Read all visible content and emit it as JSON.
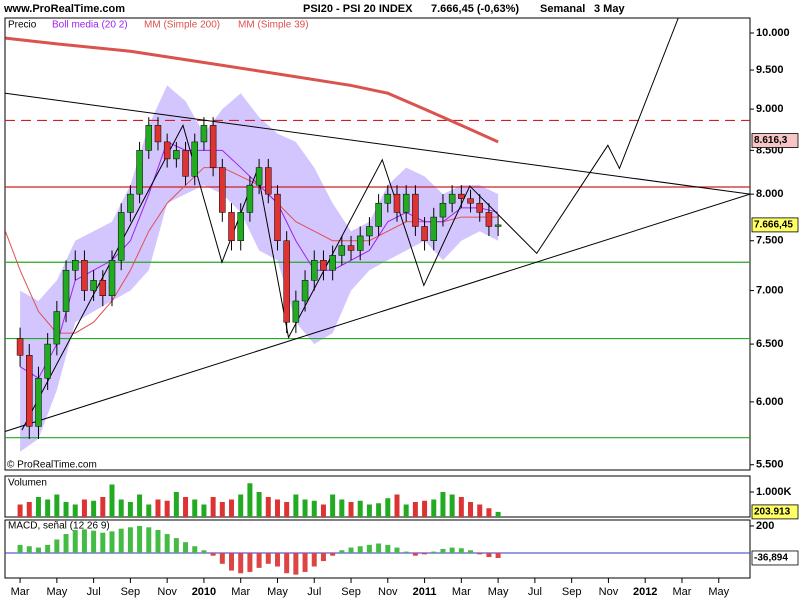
{
  "chart_data": [
    {
      "type": "candlestick",
      "site": "www.ProRealTime.com",
      "title": "PSI20 - PSI 20 INDEX",
      "last_label": "7.666,45 (-0,63%)",
      "period": "Semanal",
      "date": "3 May",
      "watermark": "© ProRealTime.com",
      "log_scale": true,
      "xlim": [
        1.18,
        41.7
      ],
      "ylim": [
        5.46,
        10.21
      ],
      "yticks": [
        {
          "value": 10,
          "label": "10.000"
        },
        {
          "value": 9.5,
          "label": "9.500"
        },
        {
          "value": 9,
          "label": "9.000"
        },
        {
          "value": 8.5,
          "label": "8.500"
        },
        {
          "value": 8,
          "label": "8.000"
        },
        {
          "value": 7.5,
          "label": "7.500"
        },
        {
          "value": 7,
          "label": "7.000"
        },
        {
          "value": 6.5,
          "label": "6.500"
        },
        {
          "value": 6,
          "label": "6.000"
        },
        {
          "value": 5.5,
          "label": "5.500"
        }
      ],
      "xticks": [
        {
          "value": 2,
          "label": "Mar"
        },
        {
          "value": 4,
          "label": "May"
        },
        {
          "value": 6,
          "label": "Jul"
        },
        {
          "value": 8,
          "label": "Sep"
        },
        {
          "value": 10,
          "label": "Nov"
        },
        {
          "value": 12,
          "label": "2010"
        },
        {
          "value": 14,
          "label": "Mar"
        },
        {
          "value": 16,
          "label": "May"
        },
        {
          "value": 18,
          "label": "Jul"
        },
        {
          "value": 20,
          "label": "Sep"
        },
        {
          "value": 22,
          "label": "Nov"
        },
        {
          "value": 24,
          "label": "2011"
        },
        {
          "value": 26,
          "label": "Mar"
        },
        {
          "value": 28,
          "label": "May"
        },
        {
          "value": 30,
          "label": "Jul"
        },
        {
          "value": 32,
          "label": "Sep"
        },
        {
          "value": 34,
          "label": "Nov"
        },
        {
          "value": 36,
          "label": "2012"
        },
        {
          "value": 38,
          "label": "Mar"
        },
        {
          "value": 40,
          "label": "May"
        }
      ],
      "candles": {
        "name": "Precio",
        "up_color": "#22aa22",
        "down_color": "#dd3333",
        "x": [
          2,
          2.5,
          3,
          3.5,
          4,
          4.5,
          5,
          5.5,
          6,
          6.5,
          7,
          7.5,
          8,
          8.5,
          9,
          9.5,
          10,
          10.5,
          11,
          11.5,
          12,
          12.5,
          13,
          13.5,
          14,
          14.5,
          15,
          15.5,
          16,
          16.5,
          17,
          17.5,
          18,
          18.5,
          19,
          19.5,
          20,
          20.5,
          21,
          21.5,
          22,
          22.5,
          23,
          23.5,
          24,
          24.5,
          25,
          25.5,
          26,
          26.5,
          27,
          27.5,
          28
        ],
        "open": [
          6.55,
          6.4,
          5.8,
          6.2,
          6.5,
          6.8,
          7.2,
          7.3,
          7.0,
          7.1,
          6.95,
          7.3,
          7.8,
          8.0,
          8.5,
          8.8,
          8.6,
          8.4,
          8.5,
          8.2,
          8.6,
          8.8,
          8.3,
          7.8,
          7.5,
          7.8,
          8.1,
          8.3,
          8.0,
          7.5,
          6.7,
          6.9,
          7.1,
          7.3,
          7.2,
          7.35,
          7.45,
          7.4,
          7.55,
          7.65,
          7.9,
          8.0,
          7.8,
          8.0,
          7.65,
          7.5,
          7.75,
          7.9,
          8.0,
          7.95,
          7.9,
          7.8,
          7.65
        ],
        "high": [
          6.65,
          6.5,
          6.3,
          6.6,
          6.9,
          7.3,
          7.4,
          7.4,
          7.2,
          7.2,
          7.4,
          7.9,
          8.1,
          8.6,
          8.9,
          8.9,
          8.7,
          8.6,
          8.6,
          8.7,
          8.9,
          8.9,
          8.4,
          7.9,
          7.9,
          8.2,
          8.4,
          8.4,
          8.1,
          7.6,
          7.0,
          7.2,
          7.4,
          7.4,
          7.45,
          7.55,
          7.55,
          7.65,
          7.75,
          8.0,
          8.1,
          8.1,
          8.1,
          8.1,
          7.75,
          7.85,
          8.0,
          8.1,
          8.1,
          8.05,
          8.0,
          7.9,
          7.77
        ],
        "low": [
          6.3,
          5.7,
          5.7,
          6.1,
          6.4,
          6.7,
          7.1,
          6.9,
          6.9,
          6.85,
          6.85,
          7.2,
          7.7,
          7.9,
          8.4,
          8.5,
          8.3,
          8.3,
          8.1,
          8.1,
          8.5,
          8.2,
          7.7,
          7.4,
          7.4,
          7.7,
          8.0,
          7.9,
          7.4,
          6.6,
          6.6,
          6.8,
          7.0,
          7.1,
          7.1,
          7.25,
          7.3,
          7.3,
          7.45,
          7.55,
          7.8,
          7.7,
          7.7,
          7.55,
          7.4,
          7.4,
          7.65,
          7.8,
          7.85,
          7.8,
          7.7,
          7.55,
          7.55
        ],
        "close": [
          6.4,
          5.8,
          6.2,
          6.5,
          6.8,
          7.2,
          7.3,
          7.0,
          7.1,
          6.95,
          7.3,
          7.8,
          8.0,
          8.5,
          8.8,
          8.6,
          8.4,
          8.5,
          8.2,
          8.6,
          8.8,
          8.3,
          7.8,
          7.5,
          7.8,
          8.1,
          8.3,
          8.0,
          7.5,
          6.7,
          6.9,
          7.1,
          7.3,
          7.2,
          7.35,
          7.45,
          7.4,
          7.55,
          7.65,
          7.9,
          8.0,
          7.8,
          8.0,
          7.65,
          7.5,
          7.75,
          7.9,
          8.0,
          7.95,
          7.9,
          7.8,
          7.65,
          7.66645
        ]
      },
      "bollinger": {
        "name": "Boll media (20 2)",
        "color": "#a020f0",
        "band_color": "#c8b8ff",
        "x": [
          2,
          3,
          4,
          5,
          6,
          7,
          8,
          9,
          10,
          11,
          12,
          13,
          14,
          15,
          16,
          17,
          18,
          19,
          20,
          21,
          22,
          23,
          24,
          25,
          26,
          27,
          28
        ],
        "upper": [
          7.0,
          6.9,
          7.1,
          7.5,
          7.6,
          7.7,
          8.1,
          8.8,
          9.3,
          9.1,
          8.7,
          9.0,
          9.2,
          8.9,
          8.7,
          8.6,
          8.3,
          7.9,
          7.6,
          7.7,
          8.1,
          8.3,
          8.2,
          8.0,
          8.1,
          8.1,
          8.0
        ],
        "middle": [
          6.3,
          6.2,
          6.5,
          7.1,
          7.2,
          7.3,
          7.5,
          8.0,
          8.6,
          8.5,
          8.5,
          8.5,
          8.3,
          8.1,
          7.9,
          7.5,
          7.2,
          7.2,
          7.3,
          7.4,
          7.7,
          7.8,
          7.7,
          7.7,
          7.85,
          7.85,
          7.8
        ],
        "lower": [
          5.6,
          5.7,
          6.1,
          6.7,
          6.8,
          6.9,
          7.0,
          7.2,
          7.9,
          8.0,
          8.1,
          8.0,
          7.8,
          7.4,
          7.3,
          6.7,
          6.5,
          6.6,
          7.0,
          7.2,
          7.3,
          7.4,
          7.5,
          7.3,
          7.5,
          7.6,
          7.5
        ]
      },
      "ma200": {
        "name": "MM (Simple 200)",
        "color": "#d9534f",
        "width": 3,
        "x": [
          1.2,
          4,
          8,
          12,
          16,
          20,
          22,
          24,
          26,
          28
        ],
        "values": [
          9.93,
          9.85,
          9.75,
          9.6,
          9.45,
          9.3,
          9.2,
          9.0,
          8.8,
          8.6
        ]
      },
      "ma39": {
        "name": "MM (Simple 39)",
        "color": "#e05050",
        "width": 1,
        "x": [
          1.2,
          2,
          3,
          4,
          5,
          6,
          7,
          8,
          9,
          10,
          11,
          12,
          13,
          14,
          15,
          16,
          17,
          18,
          19,
          20,
          21,
          22,
          23,
          24,
          25,
          26,
          27,
          28
        ],
        "values": [
          7.6,
          7.2,
          6.8,
          6.6,
          6.6,
          6.7,
          6.9,
          7.2,
          7.6,
          7.9,
          8.1,
          8.3,
          8.3,
          8.2,
          8.1,
          7.9,
          7.7,
          7.6,
          7.5,
          7.5,
          7.5,
          7.6,
          7.7,
          7.7,
          7.7,
          7.75,
          7.75,
          7.75
        ]
      },
      "hlines": [
        {
          "value": 8.86,
          "color": "#cc2222",
          "dash": "10,6"
        },
        {
          "value": 8.08,
          "color": "#cc2222",
          "dash": ""
        },
        {
          "value": 7.28,
          "color": "#22aa22",
          "dash": ""
        },
        {
          "value": 6.55,
          "color": "#22aa22",
          "dash": ""
        },
        {
          "value": 5.71,
          "color": "#22aa22",
          "dash": ""
        }
      ],
      "trendlines": [
        {
          "x": [
            1.2,
            41.7
          ],
          "values": [
            9.2,
            8.0
          ]
        },
        {
          "x": [
            1.2,
            41.7
          ],
          "values": [
            5.76,
            8.0
          ]
        }
      ],
      "projection": {
        "x": [
          2.1,
          10.86,
          12.98,
          14.9,
          16.6,
          21.7,
          23.96,
          26.46,
          30.1,
          33.97,
          34.6,
          37.8
        ],
        "values": [
          5.77,
          8.8,
          7.28,
          8.27,
          6.56,
          8.39,
          7.05,
          8.09,
          7.37,
          8.56,
          8.29,
          10.21
        ]
      },
      "price_boxes": [
        {
          "value": 8.6163,
          "label": "8.616,3",
          "color": "#f6c6c6"
        },
        {
          "value": 7.66645,
          "label": "7.666,45",
          "color": "#ffff66"
        }
      ]
    },
    {
      "type": "bar",
      "title": "Volumen",
      "up_color": "#22aa22",
      "down_color": "#dd3333",
      "x": [
        2,
        2.5,
        3,
        3.5,
        4,
        4.5,
        5,
        5.5,
        6,
        6.5,
        7,
        7.5,
        8,
        8.5,
        9,
        9.5,
        10,
        10.5,
        11,
        11.5,
        12,
        12.5,
        13,
        13.5,
        14,
        14.5,
        15,
        15.5,
        16,
        16.5,
        17,
        17.5,
        18,
        18.5,
        19,
        19.5,
        20,
        20.5,
        21,
        21.5,
        22,
        22.5,
        23,
        23.5,
        24,
        24.5,
        25,
        25.5,
        26,
        26.5,
        27,
        27.5,
        28
      ],
      "values": [
        500,
        600,
        800,
        700,
        900,
        600,
        500,
        700,
        650,
        800,
        1300,
        700,
        600,
        900,
        500,
        700,
        650,
        1000,
        800,
        700,
        500,
        800,
        600,
        700,
        900,
        1350,
        1000,
        800,
        700,
        600,
        900,
        700,
        650,
        500,
        900,
        700,
        600,
        650,
        500,
        550,
        750,
        900,
        500,
        600,
        650,
        700,
        1000,
        900,
        800,
        600,
        500,
        350,
        203.913
      ],
      "ylim": [
        0,
        1640
      ],
      "yticks": [
        {
          "value": 1000,
          "label": "1.000K"
        }
      ],
      "last_box": {
        "value": 203.913,
        "label": "203.913",
        "color": "#ffff66"
      }
    },
    {
      "type": "bar",
      "title": "MACD, señal (12 26 9)",
      "up_color": "#44bb44",
      "down_color": "#dd4444",
      "x": [
        2,
        2.5,
        3,
        3.5,
        4,
        4.5,
        5,
        5.5,
        6,
        6.5,
        7,
        7.5,
        8,
        8.5,
        9,
        9.5,
        10,
        10.5,
        11,
        11.5,
        12,
        12.5,
        13,
        13.5,
        14,
        14.5,
        15,
        15.5,
        16,
        16.5,
        17,
        17.5,
        18,
        18.5,
        19,
        19.5,
        20,
        20.5,
        21,
        21.5,
        22,
        22.5,
        23,
        23.5,
        24,
        24.5,
        25,
        25.5,
        26,
        26.5,
        27,
        27.5,
        28
      ],
      "values": [
        60,
        50,
        40,
        60,
        100,
        140,
        170,
        175,
        165,
        150,
        160,
        180,
        190,
        200,
        190,
        170,
        140,
        110,
        80,
        50,
        20,
        -20,
        -80,
        -130,
        -150,
        -140,
        -110,
        -80,
        -100,
        -150,
        -160,
        -140,
        -100,
        -60,
        -20,
        20,
        40,
        50,
        60,
        70,
        60,
        40,
        10,
        -20,
        -10,
        10,
        30,
        40,
        35,
        20,
        -10,
        -30,
        -36.894
      ],
      "ylim": [
        -185,
        244
      ],
      "yticks": [
        200
      ],
      "zero_line": {
        "value": 0,
        "color": "#3333cc"
      },
      "last_box": {
        "value": -36.894,
        "label": "-36,894",
        "color": "#ffffff"
      }
    }
  ]
}
